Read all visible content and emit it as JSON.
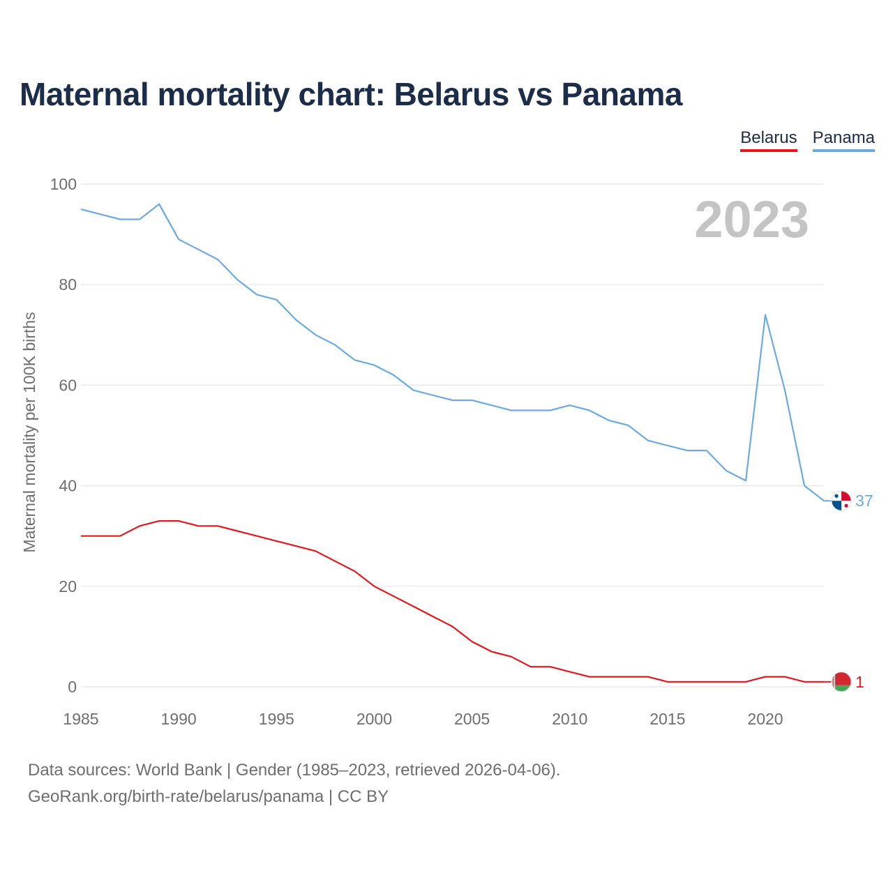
{
  "title": "Maternal mortality chart: Belarus vs Panama",
  "legend": [
    {
      "label": "Belarus",
      "color": "#e8151b"
    },
    {
      "label": "Panama",
      "color": "#6aaae6"
    }
  ],
  "year_watermark": "2023",
  "footer": {
    "line1": "Data sources: World Bank | Gender (1985–2023, retrieved 2026-04-06).",
    "line2": "GeoRank.org/birth-rate/belarus/panama | CC BY"
  },
  "chart_data": {
    "type": "line",
    "title": "Maternal mortality chart: Belarus vs Panama",
    "xlabel": "",
    "ylabel": "Maternal mortality per 100K births",
    "xlim": [
      1985,
      2023
    ],
    "ylim": [
      0,
      100
    ],
    "x_ticks": [
      1985,
      1990,
      1995,
      2000,
      2005,
      2010,
      2015,
      2020
    ],
    "y_ticks": [
      0,
      20,
      40,
      60,
      80,
      100
    ],
    "grid": true,
    "legend_position": "top-right",
    "x": [
      1985,
      1986,
      1987,
      1988,
      1989,
      1990,
      1991,
      1992,
      1993,
      1994,
      1995,
      1996,
      1997,
      1998,
      1999,
      2000,
      2001,
      2002,
      2003,
      2004,
      2005,
      2006,
      2007,
      2008,
      2009,
      2010,
      2011,
      2012,
      2013,
      2014,
      2015,
      2016,
      2017,
      2018,
      2019,
      2020,
      2021,
      2022,
      2023
    ],
    "series": [
      {
        "name": "Belarus",
        "color": "#e8151b",
        "end_label": "1",
        "values": [
          30,
          30,
          30,
          32,
          33,
          33,
          32,
          32,
          31,
          30,
          29,
          28,
          27,
          25,
          23,
          20,
          18,
          16,
          14,
          12,
          9,
          7,
          6,
          4,
          4,
          3,
          2,
          2,
          2,
          2,
          1,
          1,
          1,
          1,
          1,
          2,
          2,
          1,
          1
        ]
      },
      {
        "name": "Panama",
        "color": "#6aaae6",
        "end_label": "37",
        "values": [
          95,
          94,
          93,
          93,
          96,
          89,
          87,
          85,
          81,
          78,
          77,
          73,
          70,
          68,
          65,
          64,
          62,
          59,
          58,
          57,
          57,
          56,
          55,
          55,
          55,
          56,
          55,
          53,
          52,
          49,
          48,
          47,
          47,
          43,
          41,
          74,
          59,
          40,
          37
        ]
      }
    ]
  }
}
